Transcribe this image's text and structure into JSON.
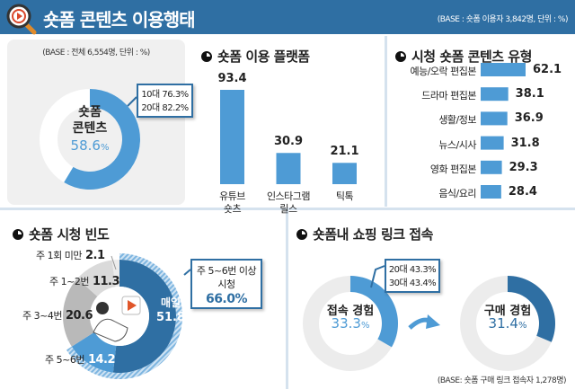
{
  "header": {
    "title": "숏폼 콘텐츠 이용행태",
    "base": "(BASE : 숏폼 이용자 3,842명, 단위 : %)",
    "icon": "magnifier-play-icon"
  },
  "colors": {
    "dark_blue": "#2f6fa3",
    "blue": "#4e9bd5",
    "gray": "#b9b9b9",
    "light_gray": "#dadada",
    "pale": "#ececec"
  },
  "usage": {
    "base": "(BASE : 전체 6,554명, 단위 : %)",
    "label_line1": "숏폼",
    "label_line2": "콘텐츠",
    "value": 58.6,
    "value_text": "58.6",
    "unit": "%",
    "callout": [
      "10대 76.3%",
      "20대 82.2%"
    ]
  },
  "platform": {
    "title": "숏폼 이용 플랫폼",
    "chart_data": {
      "type": "bar",
      "categories": [
        [
          "유튜브",
          "숏츠"
        ],
        [
          "인스타그램",
          "릴스"
        ],
        [
          "틱톡"
        ]
      ],
      "values": [
        93.4,
        30.9,
        21.1
      ]
    }
  },
  "content_type": {
    "title": "시청 숏폼 콘텐츠 유형",
    "chart_data": {
      "type": "bar",
      "orientation": "horizontal",
      "categories": [
        "예능/오락 편집본",
        "드라마 편집본",
        "생활/정보",
        "뉴스/시사",
        "영화 편집본",
        "음식/요리"
      ],
      "values": [
        62.1,
        38.1,
        36.9,
        31.8,
        29.3,
        28.4
      ]
    }
  },
  "frequency": {
    "title": "숏폼 시청 빈도",
    "chart_data": {
      "type": "pie",
      "categories": [
        "매일",
        "주 5~6번",
        "주 3~4번",
        "주 1~2번",
        "주 1회 미만"
      ],
      "values": [
        51.8,
        14.2,
        20.6,
        11.3,
        2.1
      ]
    },
    "callout": {
      "line1": "주 5~6번 이상",
      "line2": "시청",
      "value": "66.0%"
    }
  },
  "shopping": {
    "title": "숏폼내 쇼핑 링크 접속",
    "access": {
      "label": "접속 경험",
      "value": 33.3,
      "value_text": "33.3",
      "unit": "%",
      "callout": [
        "20대 43.3%",
        "30대 43.4%"
      ]
    },
    "purchase": {
      "label": "구매 경험",
      "value": 31.4,
      "value_text": "31.4",
      "unit": "%"
    },
    "base": "(BASE: 숏폼 구매 링크 접속자 1,278명)"
  }
}
